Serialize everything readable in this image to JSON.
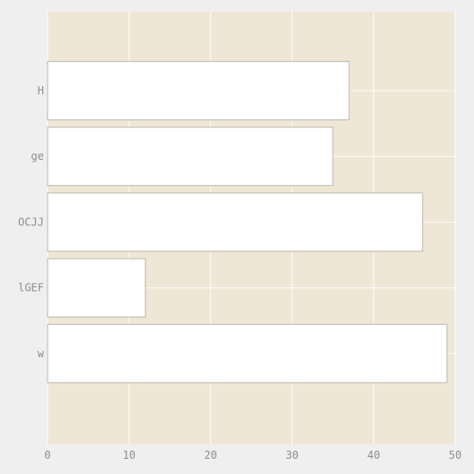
{
  "chart_data": {
    "type": "bar",
    "orientation": "horizontal",
    "categories": [
      "H",
      "ge",
      "OCJJ",
      "lGEF",
      "w"
    ],
    "values": [
      37,
      35,
      46,
      12,
      49
    ],
    "xlim": [
      0,
      50
    ],
    "xticks": [
      0,
      10,
      20,
      30,
      40,
      50
    ],
    "grid": true,
    "colors": {
      "background": "#efefef",
      "plot_background": "#efe7d6",
      "bar_fill": "#ffffff",
      "bar_edge": "#c4c1b5",
      "grid": "#ffffff",
      "tick_text": "#8e8e8e"
    }
  }
}
